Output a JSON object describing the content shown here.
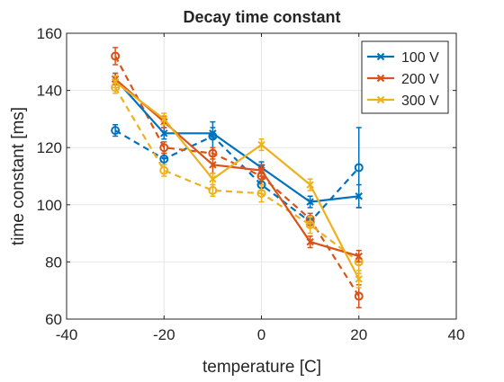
{
  "chart_data": {
    "type": "line",
    "title": "Decay time constant",
    "xlabel": "temperature [C]",
    "ylabel": "time constant [ms]",
    "xlim": [
      -40,
      40
    ],
    "ylim": [
      60,
      160
    ],
    "xticks": [
      -40,
      -20,
      0,
      20,
      40
    ],
    "yticks": [
      60,
      80,
      100,
      120,
      140,
      160
    ],
    "grid": true,
    "legend_position": "top-right",
    "x": [
      -30,
      -20,
      -10,
      0,
      10,
      20
    ],
    "series": [
      {
        "name": "100 V",
        "color": "#0072BD",
        "line_style": "solid",
        "marker": "x",
        "values": [
          144,
          125,
          125,
          113,
          101,
          103
        ],
        "errors": [
          2,
          2,
          2,
          2,
          2,
          4
        ],
        "in_legend": true
      },
      {
        "name": "200 V",
        "color": "#D95319",
        "line_style": "solid",
        "marker": "x",
        "values": [
          144,
          129,
          114,
          112,
          87,
          82
        ],
        "errors": [
          2,
          2,
          3,
          2,
          2,
          2
        ],
        "in_legend": true
      },
      {
        "name": "300 V",
        "color": "#EDB120",
        "line_style": "solid",
        "marker": "x",
        "values": [
          143,
          130,
          109,
          121,
          107,
          74
        ],
        "errors": [
          2,
          2,
          2,
          2,
          2,
          3
        ],
        "in_legend": true
      },
      {
        "name": "",
        "color": "#0072BD",
        "line_style": "dashed",
        "marker": "o",
        "values": [
          126,
          116,
          124,
          107,
          94,
          113
        ],
        "errors": [
          2,
          2,
          5,
          2,
          2,
          14
        ],
        "in_legend": false
      },
      {
        "name": "",
        "color": "#D95319",
        "line_style": "dashed",
        "marker": "o",
        "values": [
          152,
          120,
          118,
          110,
          95,
          68
        ],
        "errors": [
          3,
          2,
          2,
          3,
          2,
          4
        ],
        "in_legend": false
      },
      {
        "name": "",
        "color": "#EDB120",
        "line_style": "dashed",
        "marker": "o",
        "values": [
          141,
          112,
          105,
          104,
          93,
          80
        ],
        "errors": [
          2,
          2,
          2,
          3,
          3,
          4
        ],
        "in_legend": false
      }
    ]
  }
}
